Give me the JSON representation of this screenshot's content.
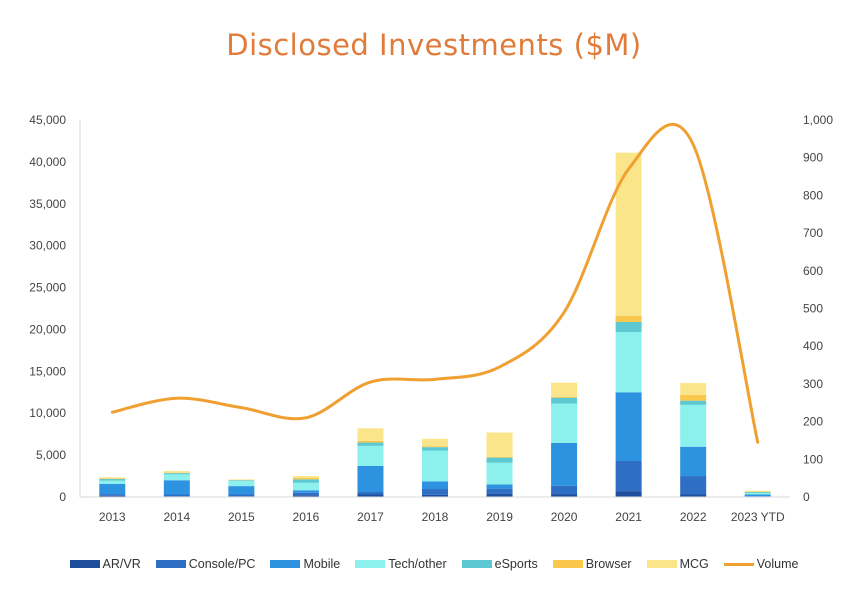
{
  "chart_data": {
    "type": "bar",
    "subtype": "stacked bar with line on secondary axis",
    "title": "Disclosed Investments ($M)",
    "title_color": "#E07B39",
    "categories": [
      "2013",
      "2014",
      "2015",
      "2016",
      "2017",
      "2018",
      "2019",
      "2020",
      "2021",
      "2022",
      "2023 YTD"
    ],
    "series": [
      {
        "name": "AR/VR",
        "color": "#1F4E9C",
        "values": [
          150,
          100,
          100,
          200,
          300,
          250,
          400,
          350,
          700,
          300,
          50
        ]
      },
      {
        "name": "Console/PC",
        "color": "#2E6FC4",
        "values": [
          200,
          200,
          200,
          300,
          300,
          700,
          600,
          1000,
          3600,
          2200,
          50
        ]
      },
      {
        "name": "Mobile",
        "color": "#2D92E0",
        "values": [
          1200,
          1700,
          1000,
          300,
          3100,
          900,
          500,
          5100,
          8200,
          3500,
          200
        ]
      },
      {
        "name": "Tech/other",
        "color": "#8CF0EC",
        "values": [
          400,
          700,
          600,
          900,
          2400,
          3700,
          2600,
          4700,
          7200,
          5000,
          200
        ]
      },
      {
        "name": "eSports",
        "color": "#5CC8D2",
        "values": [
          200,
          150,
          100,
          400,
          400,
          400,
          600,
          700,
          1200,
          500,
          100
        ]
      },
      {
        "name": "Browser",
        "color": "#F8C74C",
        "values": [
          50,
          50,
          0,
          200,
          200,
          100,
          100,
          100,
          700,
          700,
          50
        ]
      },
      {
        "name": "MCG",
        "color": "#FBE58A",
        "values": [
          150,
          200,
          100,
          200,
          1500,
          900,
          2900,
          1700,
          19500,
          1400,
          100
        ]
      }
    ],
    "line_series": {
      "name": "Volume",
      "color": "#F0A030",
      "axis": "right",
      "values": [
        225,
        262,
        237,
        210,
        305,
        312,
        345,
        490,
        870,
        935,
        145
      ]
    },
    "y_left": {
      "min": 0,
      "max": 45000,
      "step": 5000,
      "tick_labels": [
        "0",
        "5,000",
        "10,000",
        "15,000",
        "20,000",
        "25,000",
        "30,000",
        "35,000",
        "40,000",
        "45,000"
      ]
    },
    "y_right": {
      "min": 0,
      "max": 1000,
      "step": 100,
      "tick_labels": [
        "0",
        "100",
        "200",
        "300",
        "400",
        "500",
        "600",
        "700",
        "800",
        "900",
        "1,000"
      ]
    },
    "legend_position": "bottom",
    "grid": false
  }
}
